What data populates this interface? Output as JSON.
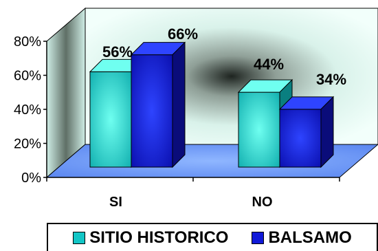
{
  "chart_data": {
    "type": "bar",
    "title": "",
    "xlabel": "",
    "ylabel": "",
    "categories": [
      "SI",
      "NO"
    ],
    "series": [
      {
        "name": "SITIO HISTORICO",
        "values": [
          56,
          44
        ],
        "color": "#12C6C6",
        "colorLight": "#6FFFF0",
        "colorDark": "#0A7F80"
      },
      {
        "name": "BALSAMO",
        "values": [
          66,
          34
        ],
        "color": "#1019D8",
        "colorLight": "#2E44FF",
        "colorDark": "#0A0C7A"
      }
    ],
    "data_labels": [
      [
        "56%",
        "44%"
      ],
      [
        "66%",
        "34%"
      ]
    ],
    "ylim": [
      0,
      80
    ],
    "yticks": [
      "0%",
      "20%",
      "40%",
      "60%",
      "80%"
    ],
    "grid": false,
    "legend_position": "bottom"
  }
}
